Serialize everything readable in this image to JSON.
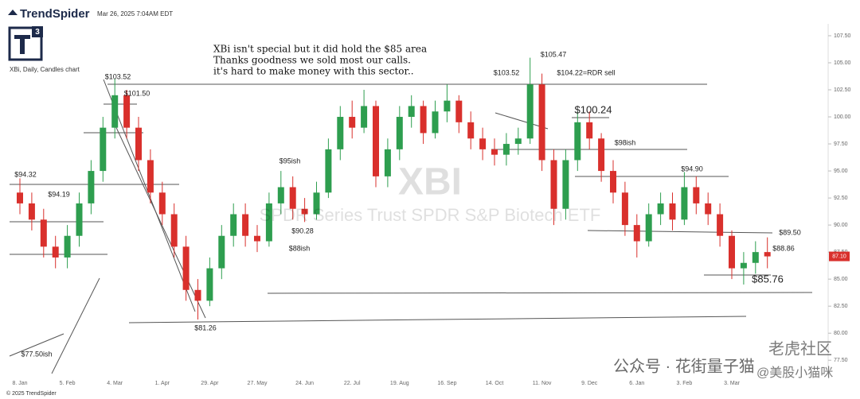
{
  "header": {
    "brand": "TrendSpider",
    "timestamp": "Mar 26, 2025 7:04AM EDT",
    "chart_label": "XBi, Daily, Candles chart",
    "footer": "© 2025 TrendSpider"
  },
  "chart_data": {
    "type": "candlestick",
    "watermark_symbol": "XBI",
    "watermark_name": "SPDR Series Trust SPDR S&P Biotech ETF",
    "notes": [
      "XBi isn't special but it did hold the $85 area",
      "Thanks goodness we sold most our calls.",
      "it's hard to make money with this sector.."
    ],
    "annotations": [
      "$103.52",
      "$101.50",
      "$94.32",
      "$94.19",
      "$95ish",
      "$90.28",
      "$88ish",
      "$81.26",
      "$77.50ish",
      "$103.52",
      "$105.47",
      "$104.22=RDR sell",
      "$100.24",
      "$98ish",
      "$94.90",
      "$89.50",
      "$88.86",
      "$85.76"
    ],
    "categories": [
      "8. Jan",
      null,
      null,
      null,
      "5. Feb",
      null,
      null,
      null,
      "4. Mar",
      null,
      null,
      null,
      "1. Apr",
      null,
      null,
      null,
      "29. Apr",
      null,
      null,
      null,
      "27. May",
      null,
      null,
      null,
      "24. Jun",
      null,
      null,
      null,
      "22. Jul",
      null,
      null,
      null,
      "19. Aug",
      null,
      null,
      null,
      "16. Sep",
      null,
      null,
      null,
      "14. Oct",
      null,
      null,
      null,
      "11. Nov",
      null,
      null,
      null,
      "9. Dec",
      null,
      null,
      null,
      "6. Jan",
      null,
      null,
      null,
      "3. Feb",
      null,
      null,
      null,
      "3. Mar",
      null,
      null,
      null
    ],
    "open": [
      93,
      92,
      90.5,
      88,
      87,
      89,
      92,
      95,
      99,
      102,
      99,
      96,
      93,
      91,
      88,
      84,
      83,
      86,
      89,
      91,
      89,
      88.5,
      92,
      93.5,
      91.5,
      91,
      93,
      97,
      100,
      99,
      101,
      94.5,
      97,
      100,
      101,
      98.5,
      100.5,
      101.5,
      99.5,
      98,
      97,
      96.5,
      97.5,
      98,
      103,
      96,
      91.5,
      96,
      99.5,
      98,
      95,
      93,
      90,
      88.5,
      91,
      92,
      90.5,
      93.5,
      92,
      91,
      89,
      86,
      86.5,
      87.5
    ],
    "high": [
      94.32,
      93,
      91.5,
      89,
      90,
      93,
      96,
      100,
      103.52,
      102.5,
      100,
      97,
      94,
      92,
      89,
      85,
      87,
      90,
      92,
      92,
      90,
      93,
      95,
      94.5,
      92.5,
      94,
      98,
      101,
      101.5,
      102.5,
      101.5,
      98,
      101,
      102,
      101.5,
      101.5,
      103,
      102,
      100.5,
      99,
      98,
      98.5,
      99,
      105.47,
      104,
      97,
      97,
      100.5,
      100.5,
      98.5,
      96,
      94,
      91,
      92,
      93,
      93,
      94.9,
      94.5,
      93,
      92,
      89.5,
      87.5,
      88.5,
      88.86
    ],
    "low": [
      91,
      89.5,
      87,
      86,
      86,
      88,
      91,
      94,
      98,
      98,
      95,
      92,
      90,
      87,
      83,
      81.26,
      82.5,
      85,
      88,
      88,
      87.5,
      88,
      91,
      90.5,
      90.28,
      90.5,
      92.5,
      96,
      98,
      98.5,
      93.5,
      93.5,
      96,
      99,
      97.5,
      98,
      99.5,
      98.5,
      97,
      96,
      95.5,
      95.5,
      96.5,
      97.5,
      95,
      90,
      90.5,
      95,
      97,
      94,
      92,
      89,
      87,
      88,
      90,
      89.5,
      90,
      91,
      90,
      88,
      85,
      84.5,
      85.5,
      86
    ],
    "close": [
      92,
      90.5,
      88,
      87,
      89,
      92,
      95,
      99,
      102,
      99,
      96,
      93,
      91,
      88,
      84,
      83,
      86,
      89,
      91,
      89,
      88.5,
      92,
      93.5,
      91.5,
      91,
      93,
      97,
      100,
      99,
      101,
      94.5,
      97,
      100,
      101,
      98.5,
      100.5,
      101.5,
      99.5,
      98,
      97,
      96.5,
      97.5,
      98,
      103,
      96,
      91.5,
      96,
      99.5,
      98,
      95,
      93,
      90,
      88.5,
      91,
      92,
      90.5,
      93.5,
      92,
      91,
      89,
      86,
      86.5,
      87.5,
      87.1
    ],
    "up_color": "#2e9e4f",
    "down_color": "#d9302c",
    "last": {
      "value": 87.1,
      "label": "87.10"
    },
    "ylim": [
      75.9,
      108.6
    ],
    "yticks": [
      {
        "value": 77.5,
        "label": "77.50"
      },
      {
        "value": 80,
        "label": "80.00"
      },
      {
        "value": 82.5,
        "label": "82.50"
      },
      {
        "value": 85,
        "label": "85.00"
      },
      {
        "value": 87.5,
        "label": "87.50"
      },
      {
        "value": 90,
        "label": "90.00"
      },
      {
        "value": 92.5,
        "label": "92.50"
      },
      {
        "value": 95,
        "label": "95.00"
      },
      {
        "value": 97.5,
        "label": "97.50"
      },
      {
        "value": 100,
        "label": "100.00"
      },
      {
        "value": 102.5,
        "label": "102.50"
      },
      {
        "value": 105,
        "label": "105.00"
      },
      {
        "value": 107.5,
        "label": "107.50"
      }
    ],
    "watermarks": [
      "公众号 · 花街量子猫",
      "老虎社区",
      "@美股小猫咪"
    ]
  }
}
